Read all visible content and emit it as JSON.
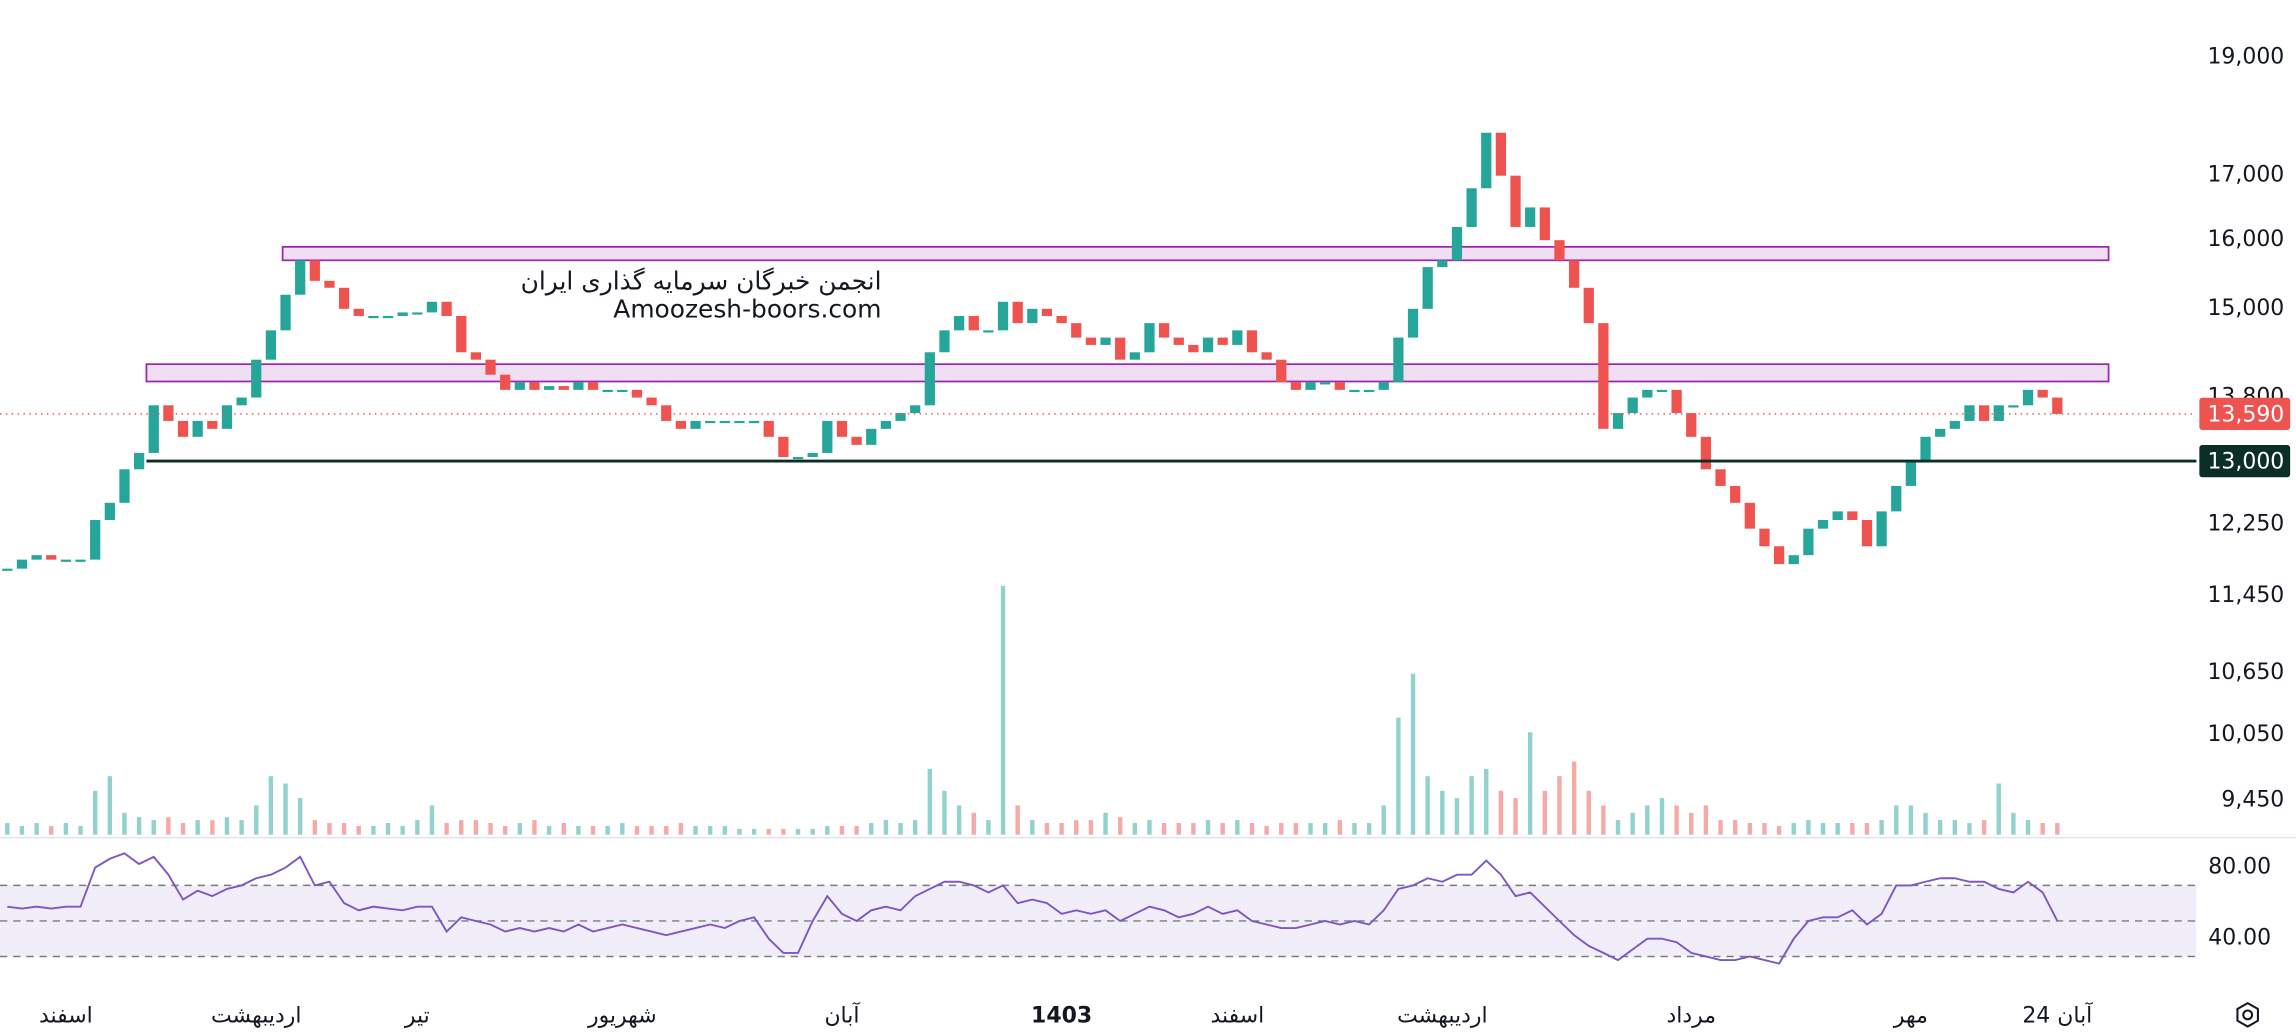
{
  "chart_data": {
    "type": "candlestick",
    "categories": [
      null,
      null,
      null,
      null,
      "اسفند",
      null,
      null,
      null,
      null,
      null,
      null,
      null,
      null,
      null,
      null,
      null,
      null,
      "اردیبهشت",
      null,
      null,
      null,
      null,
      null,
      null,
      null,
      null,
      null,
      null,
      "تیر",
      null,
      null,
      null,
      null,
      null,
      null,
      null,
      null,
      null,
      null,
      null,
      null,
      null,
      "شهریور",
      null,
      null,
      null,
      null,
      null,
      null,
      null,
      null,
      null,
      null,
      null,
      null,
      null,
      null,
      "آبان",
      null,
      null,
      null,
      null,
      null,
      null,
      null,
      null,
      null,
      null,
      null,
      null,
      null,
      null,
      "1403",
      null,
      null,
      null,
      null,
      null,
      null,
      null,
      null,
      null,
      null,
      null,
      "اسفند",
      null,
      null,
      null,
      null,
      null,
      null,
      null,
      null,
      null,
      null,
      null,
      null,
      null,
      "اردیبهشت",
      null,
      null,
      null,
      null,
      null,
      null,
      null,
      null,
      null,
      null,
      null,
      null,
      null,
      null,
      null,
      null,
      "مرداد",
      null,
      null,
      null,
      null,
      null,
      null,
      null,
      null,
      null,
      null,
      null,
      null,
      null,
      null,
      "مهر",
      null,
      null,
      null,
      null,
      null,
      null,
      null,
      null,
      null,
      "24 آبان"
    ],
    "values": [
      11750,
      11850,
      11900,
      11850,
      11850,
      11850,
      12300,
      12500,
      12900,
      13100,
      13700,
      13500,
      13300,
      13500,
      13400,
      13700,
      13800,
      14300,
      14700,
      15200,
      15700,
      15400,
      15300,
      15000,
      14900,
      14900,
      14900,
      14950,
      14950,
      15100,
      14900,
      14400,
      14300,
      14100,
      13900,
      14000,
      13900,
      13950,
      13900,
      14000,
      13900,
      13900,
      13900,
      13800,
      13700,
      13500,
      13400,
      13500,
      13500,
      13500,
      13500,
      13500,
      13300,
      13050,
      13050,
      13100,
      13500,
      13300,
      13200,
      13400,
      13500,
      13600,
      13700,
      14400,
      14700,
      14900,
      14700,
      14700,
      15100,
      14800,
      15000,
      14900,
      14800,
      14600,
      14500,
      14600,
      14300,
      14400,
      14800,
      14600,
      14500,
      14400,
      14600,
      14500,
      14700,
      14400,
      14300,
      14000,
      13900,
      14000,
      14000,
      13900,
      13900,
      13900,
      14000,
      14600,
      15000,
      15600,
      15700,
      16200,
      16800,
      17700,
      17000,
      16200,
      16500,
      16000,
      15700,
      15300,
      14800,
      13400,
      13600,
      13800,
      13900,
      13900,
      13600,
      13300,
      12900,
      12700,
      12500,
      12200,
      12000,
      11800,
      11900,
      12200,
      12300,
      12400,
      12300,
      12000,
      12400,
      12700,
      13000,
      13300,
      13400,
      13500,
      13700,
      13500,
      13700,
      13700,
      13900,
      13800,
      13590
    ],
    "colors": {
      "up": "#26a69a",
      "down": "#ef5350"
    },
    "ylim": [
      9150,
      20050
    ],
    "log_scale": true,
    "yticks": [
      {
        "value": 19000,
        "label": "19,000"
      },
      {
        "value": 17000,
        "label": "17,000"
      },
      {
        "value": 16000,
        "label": "16,000"
      },
      {
        "value": 15000,
        "label": "15,000"
      },
      {
        "value": 13800,
        "label": "13,800"
      },
      {
        "value": 12250,
        "label": "12,250"
      },
      {
        "value": 11450,
        "label": "11,450"
      },
      {
        "value": 10650,
        "label": "10,650"
      },
      {
        "value": 10050,
        "label": "10,050"
      },
      {
        "value": 9450,
        "label": "9,450"
      }
    ],
    "last_price_label": "13,590",
    "support": {
      "value": 13000,
      "label": "13,000",
      "color": "#0b2e26"
    },
    "zones": [
      [
        15700,
        15900
      ],
      [
        14010,
        14240
      ]
    ],
    "zone_color": "#9c27b0",
    "watermark": [
      "انجمن خبرگان سرمایه گذاری ایران",
      "Amoozesh-boors.com"
    ],
    "volume": {
      "values": [
        8,
        6,
        8,
        6,
        8,
        6,
        30,
        40,
        15,
        12,
        10,
        12,
        8,
        10,
        10,
        12,
        10,
        20,
        40,
        35,
        25,
        10,
        8,
        8,
        6,
        6,
        8,
        6,
        10,
        20,
        8,
        10,
        10,
        8,
        6,
        8,
        10,
        6,
        8,
        6,
        6,
        6,
        8,
        6,
        6,
        6,
        8,
        6,
        6,
        6,
        4,
        4,
        4,
        4,
        4,
        4,
        6,
        6,
        6,
        8,
        10,
        8,
        10,
        45,
        30,
        20,
        15,
        10,
        170,
        20,
        10,
        8,
        8,
        10,
        10,
        15,
        12,
        8,
        10,
        8,
        8,
        8,
        10,
        8,
        10,
        8,
        6,
        8,
        8,
        8,
        8,
        10,
        8,
        8,
        20,
        80,
        110,
        40,
        30,
        25,
        40,
        45,
        30,
        25,
        70,
        30,
        40,
        50,
        30,
        20,
        10,
        15,
        20,
        25,
        20,
        15,
        20,
        10,
        10,
        8,
        8,
        6,
        8,
        10,
        8,
        8,
        8,
        8,
        10,
        20,
        20,
        15,
        10,
        10,
        8,
        10,
        35,
        15,
        10,
        8,
        8
      ],
      "ylim": [
        0,
        180
      ]
    },
    "rsi": {
      "values": [
        58,
        57,
        58,
        57,
        58,
        58,
        80,
        85,
        88,
        82,
        86,
        76,
        62,
        67,
        64,
        68,
        70,
        74,
        76,
        80,
        86,
        70,
        72,
        60,
        56,
        58,
        57,
        56,
        58,
        58,
        44,
        52,
        50,
        48,
        44,
        46,
        44,
        46,
        44,
        48,
        44,
        46,
        48,
        46,
        44,
        42,
        44,
        46,
        48,
        46,
        50,
        52,
        40,
        32,
        32,
        50,
        64,
        54,
        50,
        56,
        58,
        56,
        64,
        68,
        72,
        72,
        70,
        66,
        70,
        60,
        62,
        60,
        54,
        56,
        54,
        56,
        50,
        54,
        58,
        56,
        52,
        54,
        58,
        54,
        56,
        50,
        48,
        46,
        46,
        48,
        50,
        48,
        50,
        48,
        56,
        68,
        70,
        74,
        72,
        76,
        76,
        84,
        76,
        64,
        66,
        58,
        50,
        42,
        36,
        32,
        28,
        34,
        40,
        40,
        38,
        32,
        30,
        28,
        28,
        30,
        28,
        26,
        40,
        50,
        52,
        52,
        56,
        48,
        54,
        70,
        70,
        72,
        74,
        74,
        72,
        72,
        68,
        66,
        72,
        66,
        50
      ],
      "color": "#7e57c2",
      "ylim": [
        12,
        96
      ],
      "yticks": [
        {
          "value": 80,
          "label": "80.00"
        },
        {
          "value": 40,
          "label": "40.00"
        }
      ],
      "bands": [
        30,
        70
      ],
      "midline": 50
    }
  }
}
